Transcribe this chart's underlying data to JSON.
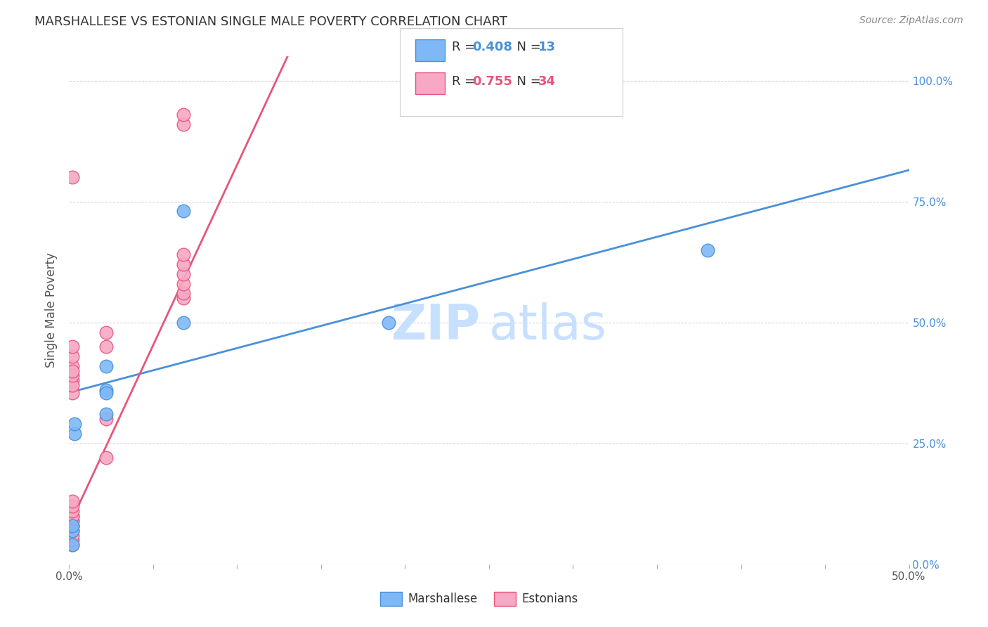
{
  "title": "MARSHALLESE VS ESTONIAN SINGLE MALE POVERTY CORRELATION CHART",
  "source": "Source: ZipAtlas.com",
  "ylabel": "Single Male Poverty",
  "ytick_labels": [
    "0.0%",
    "25.0%",
    "50.0%",
    "75.0%",
    "100.0%"
  ],
  "ytick_values": [
    0.0,
    0.25,
    0.5,
    0.75,
    1.0
  ],
  "xlim": [
    0.0,
    0.5
  ],
  "ylim": [
    0.0,
    1.05
  ],
  "legend1_R": "0.408",
  "legend1_N": "13",
  "legend2_R": "0.755",
  "legend2_N": "34",
  "color_marshallese": "#7EB8F7",
  "color_estonians": "#F7A8C4",
  "color_blue_line": "#4A90D9",
  "color_pink_line": "#E8547A",
  "watermark_color_zip": "#C8E0FF",
  "watermark_color_atlas": "#C8E0FF",
  "blue_line_x": [
    0.0,
    0.5
  ],
  "blue_line_y": [
    0.355,
    0.815
  ],
  "pink_line_x": [
    0.0,
    0.13
  ],
  "pink_line_y": [
    0.08,
    1.05
  ],
  "marshallese_x": [
    0.002,
    0.002,
    0.002,
    0.003,
    0.003,
    0.022,
    0.022,
    0.022,
    0.022,
    0.068,
    0.068,
    0.38,
    0.19
  ],
  "marshallese_y": [
    0.04,
    0.07,
    0.08,
    0.27,
    0.29,
    0.31,
    0.36,
    0.41,
    0.355,
    0.5,
    0.73,
    0.65,
    0.5
  ],
  "estonians_x": [
    0.002,
    0.002,
    0.002,
    0.002,
    0.002,
    0.002,
    0.002,
    0.002,
    0.002,
    0.002,
    0.002,
    0.002,
    0.002,
    0.002,
    0.002,
    0.002,
    0.002,
    0.002,
    0.002,
    0.002,
    0.002,
    0.002,
    0.022,
    0.022,
    0.022,
    0.022,
    0.068,
    0.068,
    0.068,
    0.068,
    0.068,
    0.068,
    0.068,
    0.068
  ],
  "estonians_y": [
    0.04,
    0.05,
    0.06,
    0.07,
    0.08,
    0.08,
    0.09,
    0.09,
    0.1,
    0.1,
    0.11,
    0.12,
    0.13,
    0.38,
    0.41,
    0.43,
    0.45,
    0.8,
    0.355,
    0.37,
    0.39,
    0.4,
    0.3,
    0.45,
    0.48,
    0.22,
    0.55,
    0.56,
    0.58,
    0.6,
    0.62,
    0.64,
    0.91,
    0.93
  ]
}
